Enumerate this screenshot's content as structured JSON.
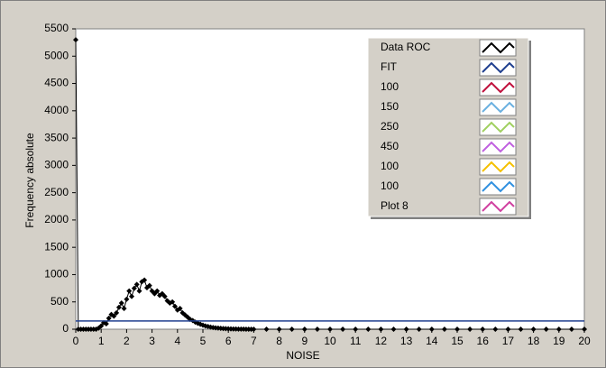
{
  "chart_data": {
    "type": "line",
    "xlabel": "NOISE",
    "ylabel": "Frequency absolute",
    "xlim": [
      0,
      20
    ],
    "xticks": [
      0,
      1,
      2,
      3,
      4,
      5,
      6,
      7,
      8,
      9,
      10,
      11,
      12,
      13,
      14,
      15,
      16,
      17,
      18,
      19,
      20
    ],
    "ylim": [
      0,
      5500
    ],
    "yticks": [
      0,
      500,
      1000,
      1500,
      2000,
      2500,
      3000,
      3500,
      4000,
      4500,
      5000,
      5500
    ],
    "series": [
      {
        "name": "Data ROC",
        "color": "#000000",
        "markers": true,
        "x": [
          0,
          0.1,
          0.2,
          0.3,
          0.4,
          0.5,
          0.6,
          0.7,
          0.8,
          0.9,
          1.0,
          1.1,
          1.2,
          1.3,
          1.4,
          1.5,
          1.6,
          1.7,
          1.8,
          1.9,
          2.0,
          2.1,
          2.2,
          2.3,
          2.4,
          2.5,
          2.6,
          2.7,
          2.8,
          2.9,
          3.0,
          3.1,
          3.2,
          3.3,
          3.4,
          3.5,
          3.6,
          3.7,
          3.8,
          3.9,
          4.0,
          4.1,
          4.2,
          4.3,
          4.4,
          4.5,
          4.6,
          4.7,
          4.8,
          4.9,
          5.0,
          5.1,
          5.2,
          5.3,
          5.4,
          5.5,
          5.6,
          5.7,
          5.8,
          5.9,
          6.0,
          6.1,
          6.2,
          6.3,
          6.4,
          6.5,
          6.6,
          6.7,
          6.8,
          6.9,
          7.0,
          7.5,
          8,
          8.5,
          9,
          9.5,
          10,
          10.5,
          11,
          11.5,
          12,
          12.5,
          13,
          13.5,
          14,
          14.5,
          15,
          15.5,
          16,
          16.5,
          17,
          17.5,
          18,
          18.5,
          19,
          19.5,
          20
        ],
        "values": [
          5300,
          0,
          0,
          0,
          0,
          0,
          0,
          0,
          0,
          20,
          60,
          120,
          100,
          200,
          270,
          240,
          300,
          400,
          480,
          380,
          550,
          700,
          600,
          750,
          820,
          700,
          870,
          900,
          760,
          800,
          700,
          650,
          700,
          620,
          650,
          600,
          520,
          480,
          500,
          420,
          350,
          380,
          300,
          260,
          220,
          180,
          160,
          130,
          110,
          90,
          75,
          60,
          50,
          40,
          32,
          25,
          20,
          16,
          12,
          10,
          8,
          6,
          5,
          4,
          3,
          2,
          2,
          1,
          1,
          0,
          0,
          0,
          0,
          0,
          0,
          0,
          0,
          0,
          0,
          0,
          0,
          0,
          0,
          0,
          0,
          0,
          0,
          0,
          0,
          0,
          0,
          0,
          0,
          0,
          0,
          0,
          0
        ]
      },
      {
        "name": "FIT",
        "color": "#1f3f8f",
        "x": [
          0,
          20
        ],
        "values": [
          150,
          150
        ]
      },
      {
        "name": "100",
        "color": "#c0103c"
      },
      {
        "name": "150",
        "color": "#6ab0e0"
      },
      {
        "name": "250",
        "color": "#a0d060"
      },
      {
        "name": "450",
        "color": "#c060e0"
      },
      {
        "name": "100",
        "color": "#f5c000"
      },
      {
        "name": "100",
        "color": "#3090e0"
      },
      {
        "name": "Plot 8",
        "color": "#d040a0"
      }
    ]
  }
}
